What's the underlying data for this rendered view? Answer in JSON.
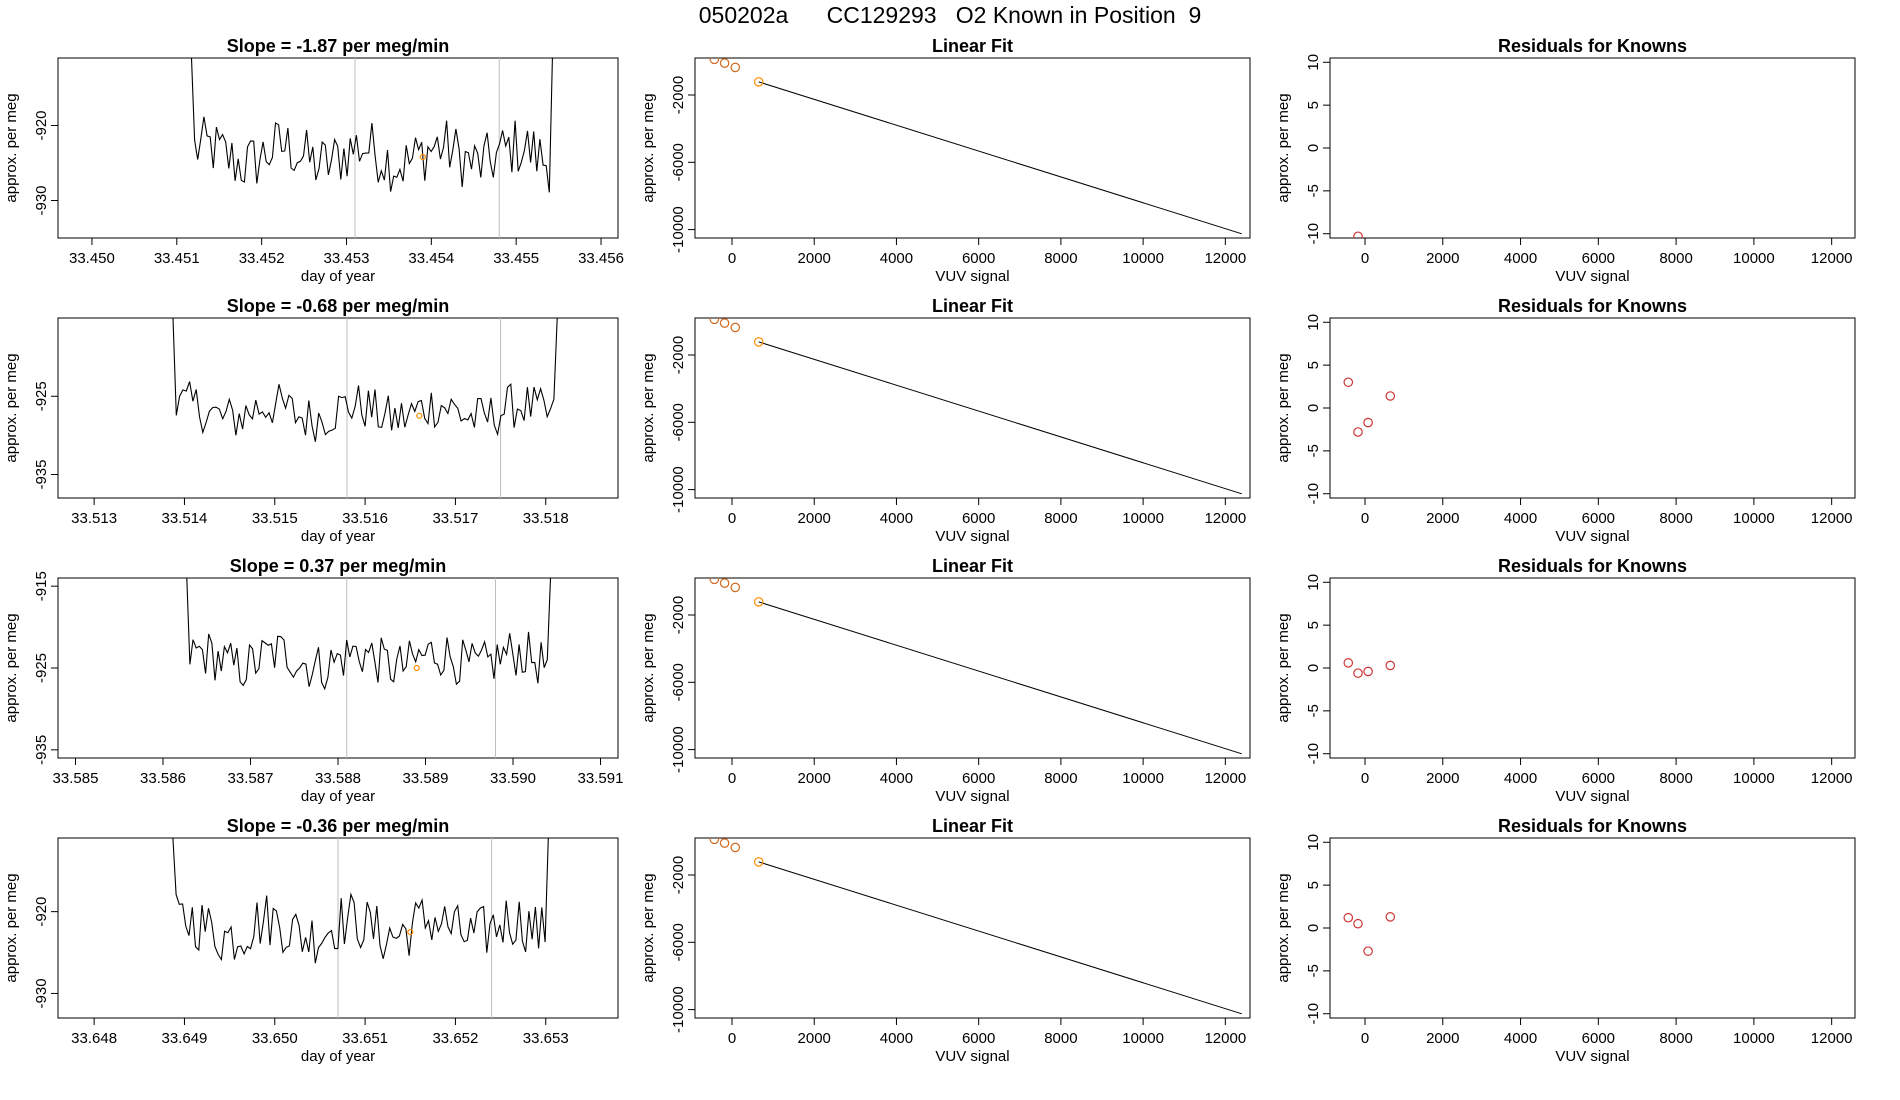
{
  "page_title": "050202a      CC129293   O2 Known in Position  9",
  "colors": {
    "trace": "#000000",
    "gridline": "#bfbfbf",
    "fit_line": "#000000",
    "known_point": "#d2691e",
    "highlight_point": "#ff8c00",
    "residual_point": "#cd3333"
  },
  "chart_data": [
    {
      "type": "line",
      "title": "Slope =  -1.87  per meg/min",
      "xlabel": "day of year",
      "ylabel": "approx. per meg",
      "xlim": [
        33.4496,
        33.4562
      ],
      "ylim": [
        -935,
        -911
      ],
      "x_ticks": [
        "33.450",
        "33.451",
        "33.452",
        "33.453",
        "33.454",
        "33.455",
        "33.456"
      ],
      "y_ticks": [
        "-920",
        "-930"
      ],
      "x_start": 33.4511,
      "x_end": 33.4555,
      "center": -924,
      "amplitude": 4,
      "highlight": {
        "x": 33.4539,
        "y": -924.2
      },
      "vlines": [
        33.4531,
        33.4548
      ],
      "grid": false
    },
    {
      "type": "scatter",
      "title": "Linear Fit",
      "xlabel": "VUV signal",
      "ylabel": "approx. per meg",
      "xlim": [
        -900,
        12600
      ],
      "ylim": [
        -10500,
        200
      ],
      "x_ticks": [
        "0",
        "2000",
        "4000",
        "6000",
        "8000",
        "10000",
        "12000"
      ],
      "y_ticks": [
        "-2000",
        "-6000",
        "-10000"
      ],
      "points": [
        [
          -430,
          120
        ],
        [
          -180,
          -100
        ],
        [
          80,
          -360
        ],
        [
          650,
          -1220
        ]
      ],
      "fit_line": {
        "x": [
          650,
          12400
        ],
        "y": [
          -1220,
          -10250
        ]
      },
      "grid": false
    },
    {
      "type": "scatter",
      "title": "Residuals for Knowns",
      "xlabel": "VUV signal",
      "ylabel": "approx. per meg",
      "xlim": [
        -900,
        12600
      ],
      "ylim": [
        -10.5,
        10.5
      ],
      "x_ticks": [
        "0",
        "2000",
        "4000",
        "6000",
        "8000",
        "10000",
        "12000"
      ],
      "y_ticks": [
        "10",
        "5",
        "0",
        "-5",
        "-10"
      ],
      "points": [
        [
          -180,
          -10.3
        ]
      ],
      "grid": false
    },
    {
      "type": "line",
      "title": "Slope =  -0.68  per meg/min",
      "xlabel": "day of year",
      "ylabel": "approx. per meg",
      "xlim": [
        33.5126,
        33.5188
      ],
      "ylim": [
        -938,
        -915
      ],
      "x_ticks": [
        "33.513",
        "33.514",
        "33.515",
        "33.516",
        "33.517",
        "33.518"
      ],
      "y_ticks": [
        "-925",
        "-935"
      ],
      "x_start": 33.5138,
      "x_end": 33.5182,
      "center": -927,
      "amplitude": 3,
      "highlight": {
        "x": 33.5166,
        "y": -927.5
      },
      "vlines": [
        33.5158,
        33.5175
      ],
      "grid": false
    },
    {
      "type": "scatter",
      "title": "Linear Fit",
      "xlabel": "VUV signal",
      "ylabel": "approx. per meg",
      "xlim": [
        -900,
        12600
      ],
      "ylim": [
        -10500,
        200
      ],
      "x_ticks": [
        "0",
        "2000",
        "4000",
        "6000",
        "8000",
        "10000",
        "12000"
      ],
      "y_ticks": [
        "-2000",
        "-6000",
        "-10000"
      ],
      "points": [
        [
          -430,
          120
        ],
        [
          -180,
          -100
        ],
        [
          80,
          -360
        ],
        [
          650,
          -1220
        ]
      ],
      "fit_line": {
        "x": [
          650,
          12400
        ],
        "y": [
          -1220,
          -10250
        ]
      },
      "grid": false
    },
    {
      "type": "scatter",
      "title": "Residuals for Knowns",
      "xlabel": "VUV signal",
      "ylabel": "approx. per meg",
      "xlim": [
        -900,
        12600
      ],
      "ylim": [
        -10.5,
        10.5
      ],
      "x_ticks": [
        "0",
        "2000",
        "4000",
        "6000",
        "8000",
        "10000",
        "12000"
      ],
      "y_ticks": [
        "10",
        "5",
        "0",
        "-5",
        "-10"
      ],
      "points": [
        [
          -430,
          3.0
        ],
        [
          -180,
          -2.8
        ],
        [
          80,
          -1.7
        ],
        [
          650,
          1.4
        ]
      ],
      "grid": false
    },
    {
      "type": "line",
      "title": "Slope =  0.37  per meg/min",
      "xlabel": "day of year",
      "ylabel": "approx. per meg",
      "xlim": [
        33.5848,
        33.5912
      ],
      "ylim": [
        -936,
        -914
      ],
      "x_ticks": [
        "33.585",
        "33.586",
        "33.587",
        "33.588",
        "33.589",
        "33.590",
        "33.591"
      ],
      "y_ticks": [
        "-915",
        "-925",
        "-935"
      ],
      "x_start": 33.5862,
      "x_end": 33.5905,
      "center": -924,
      "amplitude": 3,
      "highlight": {
        "x": 33.5889,
        "y": -925
      },
      "vlines": [
        33.5881,
        33.5898
      ],
      "grid": false
    },
    {
      "type": "scatter",
      "title": "Linear Fit",
      "xlabel": "VUV signal",
      "ylabel": "approx. per meg",
      "xlim": [
        -900,
        12600
      ],
      "ylim": [
        -10500,
        200
      ],
      "x_ticks": [
        "0",
        "2000",
        "4000",
        "6000",
        "8000",
        "10000",
        "12000"
      ],
      "y_ticks": [
        "-2000",
        "-6000",
        "-10000"
      ],
      "points": [
        [
          -430,
          120
        ],
        [
          -180,
          -100
        ],
        [
          80,
          -360
        ],
        [
          650,
          -1220
        ]
      ],
      "fit_line": {
        "x": [
          650,
          12400
        ],
        "y": [
          -1220,
          -10250
        ]
      },
      "grid": false
    },
    {
      "type": "scatter",
      "title": "Residuals for Knowns",
      "xlabel": "VUV signal",
      "ylabel": "approx. per meg",
      "xlim": [
        -900,
        12600
      ],
      "ylim": [
        -10.5,
        10.5
      ],
      "x_ticks": [
        "0",
        "2000",
        "4000",
        "6000",
        "8000",
        "10000",
        "12000"
      ],
      "y_ticks": [
        "10",
        "5",
        "0",
        "-5",
        "-10"
      ],
      "points": [
        [
          -430,
          0.6
        ],
        [
          -180,
          -0.6
        ],
        [
          80,
          -0.4
        ],
        [
          650,
          0.3
        ]
      ],
      "grid": false
    },
    {
      "type": "line",
      "title": "Slope =  -0.36  per meg/min",
      "xlabel": "day of year",
      "ylabel": "approx. per meg",
      "xlim": [
        33.6476,
        33.6538
      ],
      "ylim": [
        -933,
        -911
      ],
      "x_ticks": [
        "33.648",
        "33.649",
        "33.650",
        "33.651",
        "33.652",
        "33.653"
      ],
      "y_ticks": [
        "-920",
        "-930"
      ],
      "x_start": 33.6488,
      "x_end": 33.6531,
      "center": -922,
      "amplitude": 3.5,
      "highlight": {
        "x": 33.6515,
        "y": -922.5
      },
      "vlines": [
        33.6507,
        33.6524
      ],
      "grid": false
    },
    {
      "type": "scatter",
      "title": "Linear Fit",
      "xlabel": "VUV signal",
      "ylabel": "approx. per meg",
      "xlim": [
        -900,
        12600
      ],
      "ylim": [
        -10500,
        200
      ],
      "x_ticks": [
        "0",
        "2000",
        "4000",
        "6000",
        "8000",
        "10000",
        "12000"
      ],
      "y_ticks": [
        "-2000",
        "-6000",
        "-10000"
      ],
      "points": [
        [
          -430,
          120
        ],
        [
          -180,
          -100
        ],
        [
          80,
          -360
        ],
        [
          650,
          -1220
        ]
      ],
      "fit_line": {
        "x": [
          650,
          12400
        ],
        "y": [
          -1220,
          -10250
        ]
      },
      "grid": false
    },
    {
      "type": "scatter",
      "title": "Residuals for Knowns",
      "xlabel": "VUV signal",
      "ylabel": "approx. per meg",
      "xlim": [
        -900,
        12600
      ],
      "ylim": [
        -10.5,
        10.5
      ],
      "x_ticks": [
        "0",
        "2000",
        "4000",
        "6000",
        "8000",
        "10000",
        "12000"
      ],
      "y_ticks": [
        "10",
        "5",
        "0",
        "-5",
        "-10"
      ],
      "points": [
        [
          -430,
          1.2
        ],
        [
          -180,
          0.5
        ],
        [
          80,
          -2.7
        ],
        [
          650,
          1.3
        ]
      ],
      "grid": false
    }
  ]
}
